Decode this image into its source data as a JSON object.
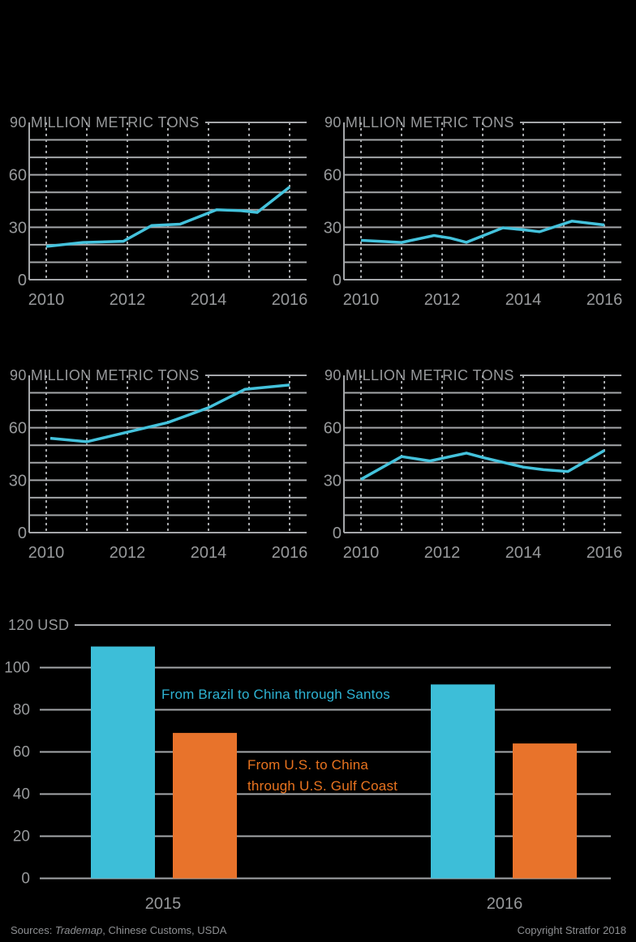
{
  "page": {
    "background": "#000000",
    "colors": {
      "line": "#44C2DC",
      "bar_blue": "#3DBED8",
      "bar_orange": "#E8732B",
      "grid": "#A5A7AA",
      "axis_text": "#97999B",
      "footer_text": "#8E9093",
      "label_blue": "#2EB3D3",
      "label_orange": "#E8731F"
    },
    "footer": {
      "sources_label": "Sources: ",
      "sources_name": "Trademap",
      "sources_rest": ", Chinese Customs, USDA",
      "copyright": "Copyright Stratfor 2018"
    }
  },
  "chart_data": [
    {
      "type": "line",
      "position": "top-left",
      "y_max_label": "90",
      "unit_label": "MILLION METRIC TONS",
      "ylim": [
        0,
        90
      ],
      "grid_step": 10,
      "xlim": [
        2010,
        2016
      ],
      "xticks": [
        "2010",
        "2012",
        "2014",
        "2016"
      ],
      "yticks": [
        "90",
        "60",
        "30",
        "0"
      ],
      "color": "#44C2DC",
      "points": [
        [
          2010,
          19
        ],
        [
          2010.9,
          21.3
        ],
        [
          2011.9,
          22
        ],
        [
          2012.6,
          31
        ],
        [
          2013.3,
          31.8
        ],
        [
          2014.2,
          40
        ],
        [
          2014.8,
          39.5
        ],
        [
          2015.2,
          38.5
        ],
        [
          2016,
          53
        ]
      ]
    },
    {
      "type": "line",
      "position": "top-right",
      "y_max_label": "90",
      "unit_label": "MILLION METRIC TONS",
      "ylim": [
        0,
        90
      ],
      "grid_step": 10,
      "xlim": [
        2010,
        2016
      ],
      "xticks": [
        "2010",
        "2012",
        "2014",
        "2016"
      ],
      "yticks": [
        "90",
        "60",
        "30",
        "0"
      ],
      "color": "#44C2DC",
      "points": [
        [
          2010,
          22.5
        ],
        [
          2010.6,
          21.8
        ],
        [
          2011,
          21.3
        ],
        [
          2011.8,
          25.3
        ],
        [
          2012.2,
          23.8
        ],
        [
          2012.6,
          21.4
        ],
        [
          2013.5,
          29.7
        ],
        [
          2014,
          28.6
        ],
        [
          2014.4,
          27.4
        ],
        [
          2015.2,
          33.5
        ],
        [
          2016,
          31.3
        ]
      ]
    },
    {
      "type": "line",
      "position": "middle-left",
      "y_max_label": "90",
      "unit_label": "MILLION METRIC TONS",
      "ylim": [
        0,
        90
      ],
      "grid_step": 10,
      "xlim": [
        2010,
        2016
      ],
      "xticks": [
        "2010",
        "2012",
        "2014",
        "2016"
      ],
      "yticks": [
        "90",
        "60",
        "30",
        "0"
      ],
      "color": "#44C2DC",
      "points": [
        [
          2010.1,
          54
        ],
        [
          2011,
          52
        ],
        [
          2012,
          57.5
        ],
        [
          2013,
          63
        ],
        [
          2014,
          71.5
        ],
        [
          2014.9,
          82
        ],
        [
          2016,
          84.5
        ]
      ]
    },
    {
      "type": "line",
      "position": "middle-right",
      "y_max_label": "90",
      "unit_label": "MILLION METRIC TONS",
      "ylim": [
        0,
        90
      ],
      "grid_step": 10,
      "xlim": [
        2010,
        2016
      ],
      "xticks": [
        "2010",
        "2012",
        "2014",
        "2016"
      ],
      "yticks": [
        "90",
        "60",
        "30",
        "0"
      ],
      "color": "#44C2DC",
      "points": [
        [
          2010,
          30.5
        ],
        [
          2011,
          43.5
        ],
        [
          2011.7,
          41
        ],
        [
          2012.6,
          45.5
        ],
        [
          2013,
          43
        ],
        [
          2014,
          37.5
        ],
        [
          2014.5,
          36
        ],
        [
          2015.1,
          35
        ],
        [
          2016,
          47
        ]
      ]
    },
    {
      "type": "bar",
      "position": "bottom",
      "y_max_label": "120",
      "unit_label": "USD",
      "ylim": [
        0,
        120
      ],
      "grid_step": 20,
      "yticks": [
        "120",
        "100",
        "80",
        "60",
        "40",
        "20",
        "0"
      ],
      "categories": [
        "2015",
        "2016"
      ],
      "series": [
        {
          "name": "From Brazil to China through Santos",
          "color": "#3DBED8",
          "values": [
            110,
            92
          ]
        },
        {
          "name": "From U.S. to China through U.S. Gulf Coast",
          "color": "#E8732B",
          "values": [
            69,
            64
          ]
        }
      ]
    }
  ]
}
